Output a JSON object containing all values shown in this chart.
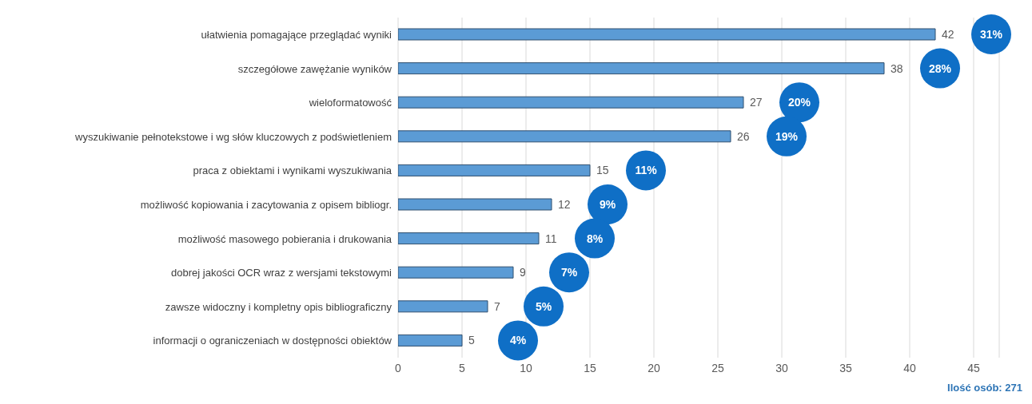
{
  "chart_data": {
    "type": "bar",
    "orientation": "horizontal",
    "categories": [
      "ułatwienia pomagające przeglądać wyniki",
      "szczegółowe zawężanie wyników",
      "wieloformatowość",
      "wyszukiwanie pełnotekstowe i wg słów kluczowych z podświetleniem",
      "praca z obiektami i wynikami wyszukiwania",
      "możliwość kopiowania i zacytowania z opisem bibliogr.",
      "możliwość masowego pobierania i drukowania",
      "dobrej jakości OCR wraz z wersjami tekstowymi",
      "zawsze widoczny i kompletny opis bibliograficzny",
      "informacji o ograniczeniach w dostępności obiektów"
    ],
    "series": [
      {
        "color": "#5b9bd5",
        "values": [
          42,
          38,
          27,
          26,
          15,
          12,
          11,
          9,
          7,
          5
        ],
        "value_labels": [
          "42",
          "38",
          "27",
          "26",
          "15",
          "12",
          "11",
          "9",
          "7",
          "5"
        ]
      }
    ],
    "xlim": [
      0,
      47
    ],
    "xticks": [
      0,
      5,
      10,
      15,
      20,
      25,
      30,
      35,
      40,
      45
    ],
    "grid": "x",
    "annotations": [
      "31%",
      "28%",
      "20%",
      "19%",
      "11%",
      "9%",
      "8%",
      "7%",
      "5%",
      "4%",
      "Ilość osób: 271"
    ]
  }
}
